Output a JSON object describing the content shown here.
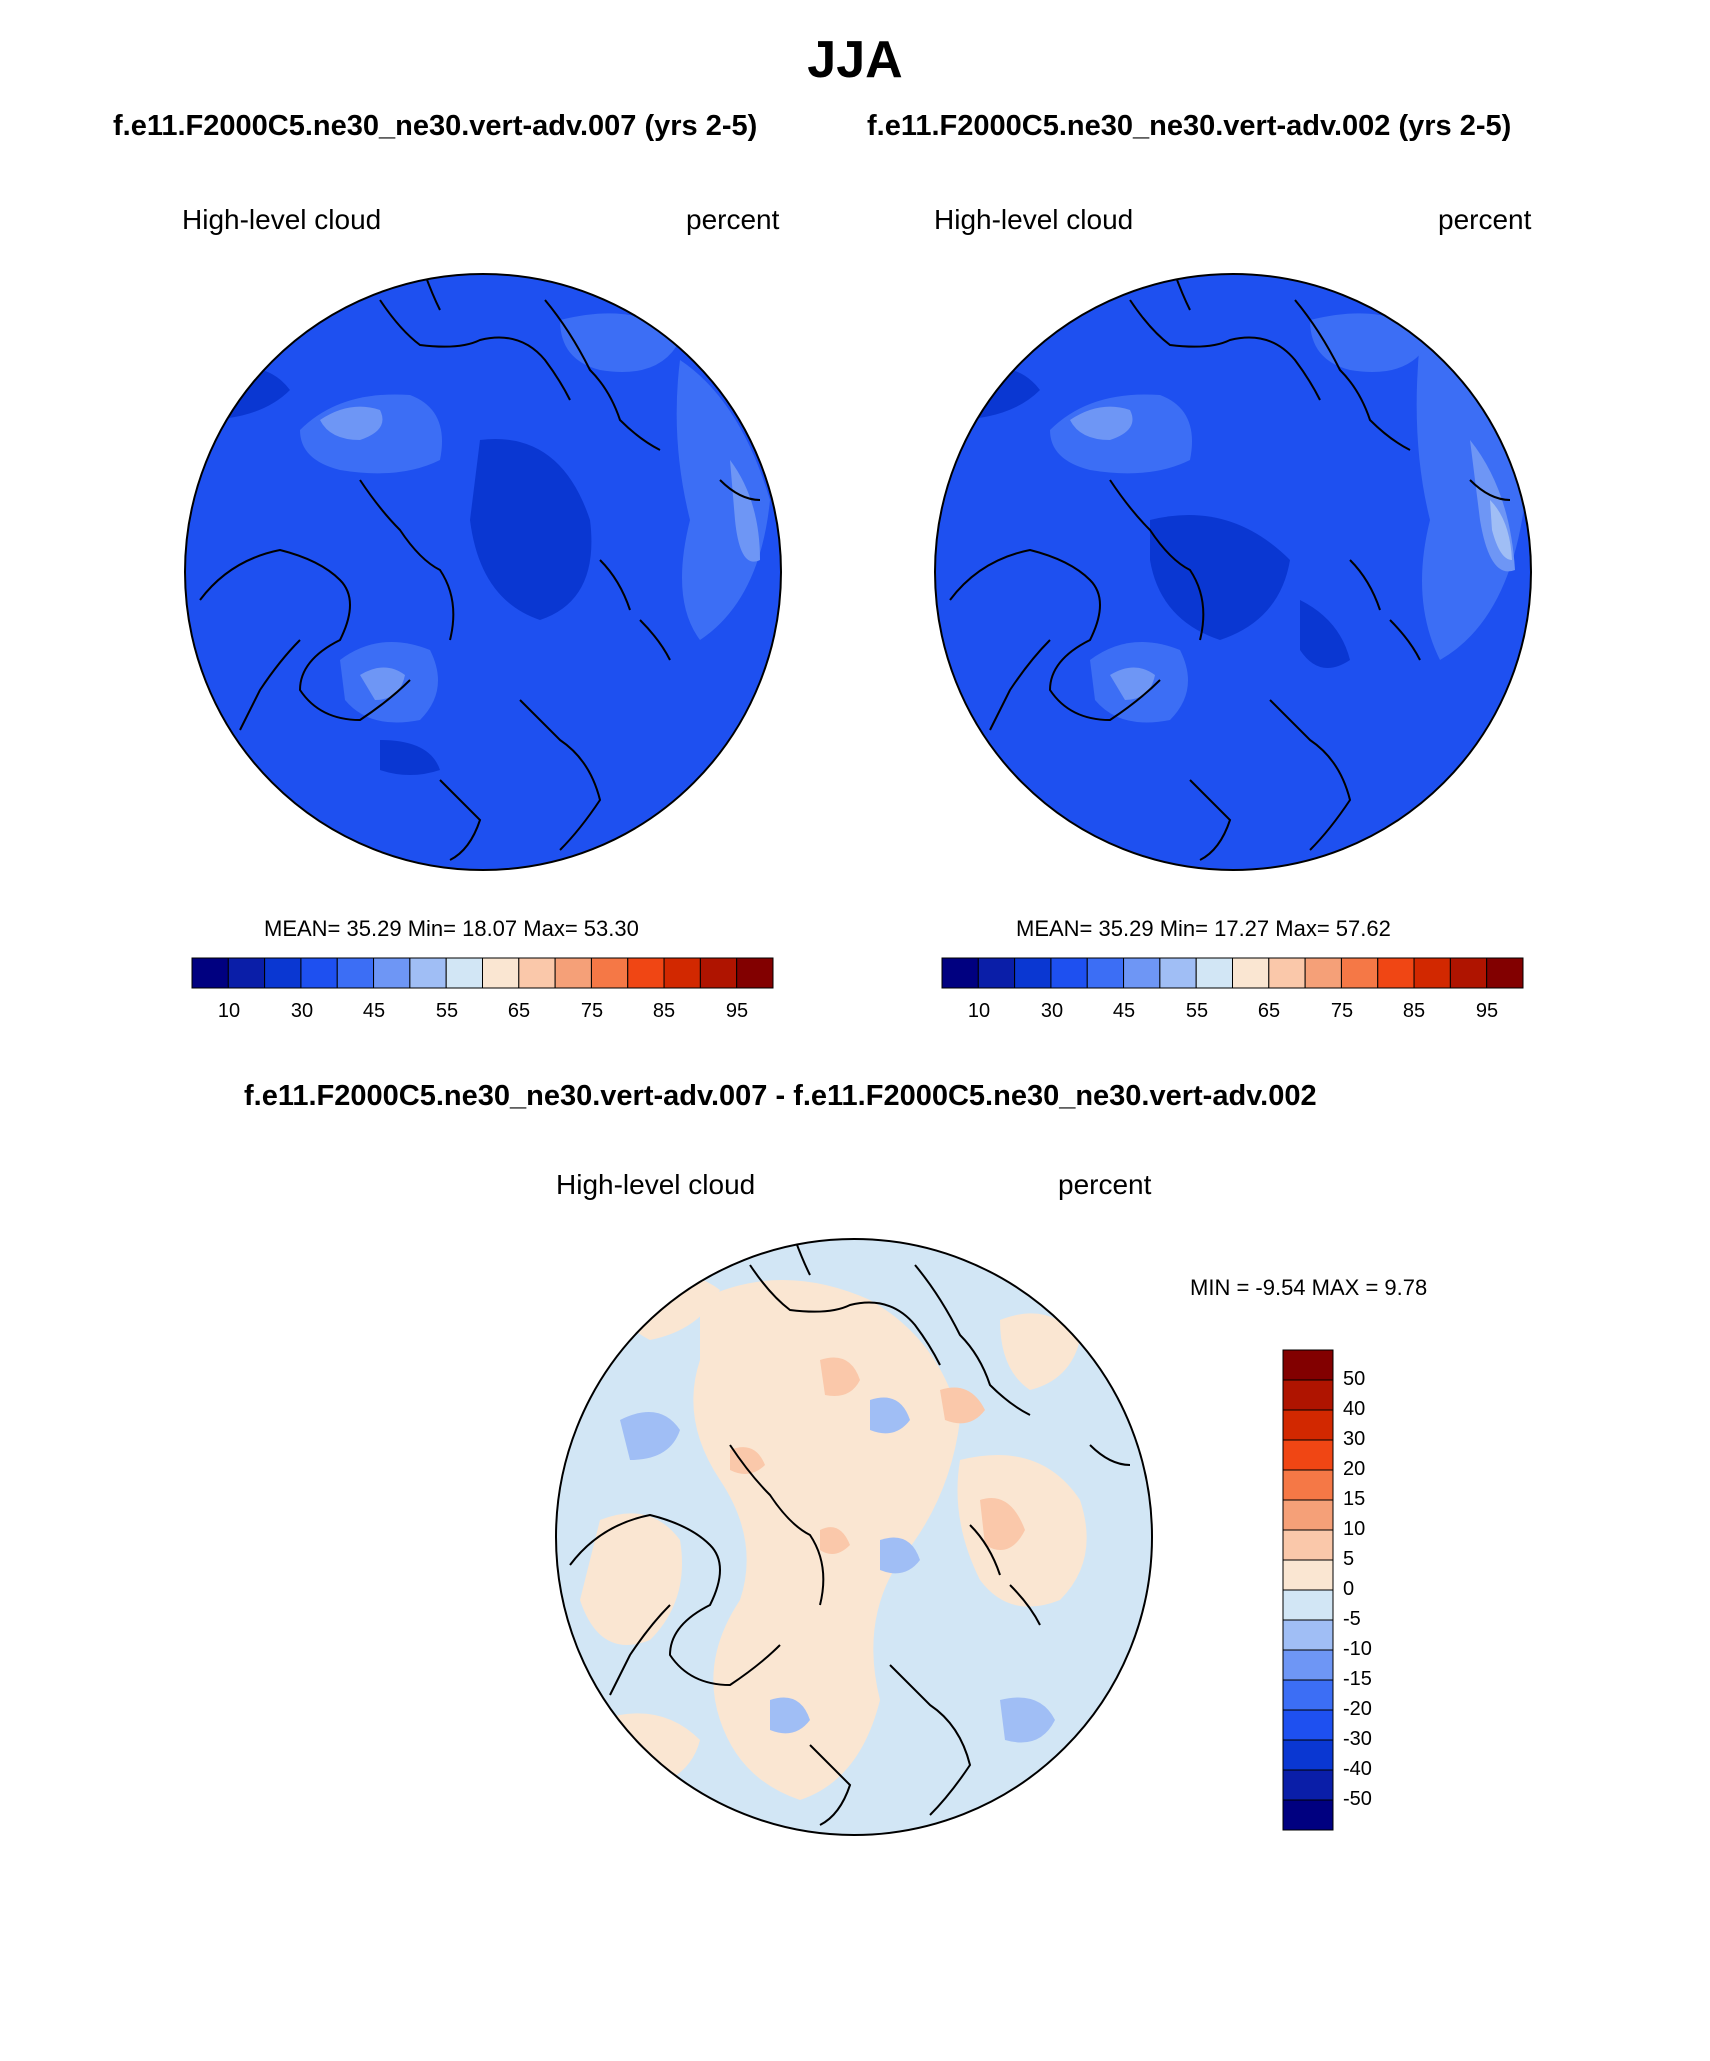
{
  "figure_title": "JJA",
  "panels": [
    {
      "case_title": "f.e11.F2000C5.ne30_ne30.vert-adv.007 (yrs 2-5)",
      "variable": "High-level cloud",
      "units": "percent",
      "stats": "MEAN=  35.29  Min=  18.07  Max=  53.30",
      "colorbar_ticks": [
        "10",
        "30",
        "45",
        "55",
        "65",
        "75",
        "85",
        "95"
      ]
    },
    {
      "case_title": "f.e11.F2000C5.ne30_ne30.vert-adv.002 (yrs 2-5)",
      "variable": "High-level cloud",
      "units": "percent",
      "stats": "MEAN=  35.29  Min=  17.27  Max=  57.62",
      "colorbar_ticks": [
        "10",
        "30",
        "45",
        "55",
        "65",
        "75",
        "85",
        "95"
      ]
    }
  ],
  "difference": {
    "title": "f.e11.F2000C5.ne30_ne30.vert-adv.007 - f.e11.F2000C5.ne30_ne30.vert-adv.002",
    "variable": "High-level cloud",
    "units": "percent",
    "stats": "MIN =  -9.54 MAX =   9.78",
    "colorbar_ticks": [
      "50",
      "40",
      "30",
      "20",
      "15",
      "10",
      "5",
      "0",
      "-5",
      "-10",
      "-15",
      "-20",
      "-30",
      "-40",
      "-50"
    ]
  },
  "colors": {
    "abs_scale": [
      "#000080",
      "#0a1ea8",
      "#0a37d2",
      "#1e50f0",
      "#3c6ef5",
      "#6e96f5",
      "#a0bef5",
      "#d2e6f5",
      "#fae6d2",
      "#fac8aa",
      "#f5a078",
      "#f57846",
      "#f04614",
      "#d22800",
      "#af1400",
      "#820000"
    ],
    "diff_scale": [
      "#820000",
      "#af1400",
      "#d22800",
      "#f04614",
      "#f57846",
      "#f5a078",
      "#fac8aa",
      "#fae6d2",
      "#d2e6f5",
      "#a0bef5",
      "#6e96f5",
      "#3c6ef5",
      "#1e50f0",
      "#0a37d2",
      "#0a1ea8",
      "#000080"
    ]
  }
}
